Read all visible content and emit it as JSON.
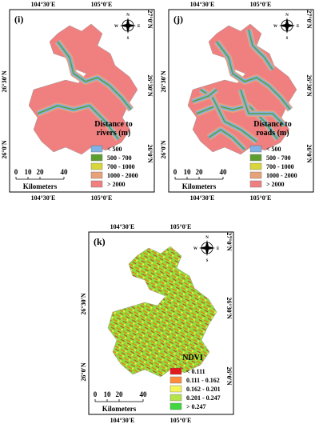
{
  "compass": [
    "N",
    "S",
    "E",
    "W"
  ],
  "panels": [
    {
      "label": "(i)",
      "top_labels": [
        "104°30'E",
        "105°0'E"
      ],
      "bottom_labels": [
        "104°30'E",
        "105°0'E"
      ],
      "left_labels": [
        "26°30'N",
        "26°0'N"
      ],
      "right_labels": [
        "27°0'N",
        "26°30'N",
        "26°0'N"
      ],
      "scale": {
        "ticks": [
          "0",
          "10",
          "20",
          "40"
        ],
        "unit": "Kilometers"
      },
      "legend": {
        "title": [
          "Distance to",
          "rivers (m)"
        ],
        "items": [
          {
            "label": "< 500",
            "color": "#7fb2e5"
          },
          {
            "label": "500 - 700",
            "color": "#5e9e2f"
          },
          {
            "label": "700 - 1000",
            "color": "#d8d63a"
          },
          {
            "label": "1000 - 2000",
            "color": "#e8a27a"
          },
          {
            "label": "> 2000",
            "color": "#f08080"
          }
        ]
      }
    },
    {
      "label": "(j)",
      "top_labels": [
        "104°30'E",
        "105°0'E"
      ],
      "bottom_labels": [
        "104°30'E",
        "105°0'E"
      ],
      "left_labels": [
        "26°30'N",
        "26°0'N"
      ],
      "right_labels": [
        "27°0'N",
        "26°30'N",
        "26°0'N"
      ],
      "scale": {
        "ticks": [
          "0",
          "10",
          "20",
          "40"
        ],
        "unit": "Kilometers"
      },
      "legend": {
        "title": [
          "Distance to",
          "roads (m)"
        ],
        "items": [
          {
            "label": "< 500",
            "color": "#7fb2e5"
          },
          {
            "label": "500 - 700",
            "color": "#5e9e2f"
          },
          {
            "label": "700 - 1000",
            "color": "#d8d63a"
          },
          {
            "label": "1000 - 2000",
            "color": "#e8a27a"
          },
          {
            "label": "> 2000",
            "color": "#f08080"
          }
        ]
      }
    },
    {
      "label": "(k)",
      "top_labels": [
        "104°30'E",
        "105°0'E"
      ],
      "bottom_labels": [
        "104°30'E",
        "105°0'E"
      ],
      "left_labels": [
        "26°30'N",
        "26°0'N"
      ],
      "right_labels": [
        "27°0'N",
        "26°30'N",
        "26°0'N"
      ],
      "scale": {
        "ticks": [
          "0",
          "10",
          "20",
          "40"
        ],
        "unit": "Kilometers"
      },
      "legend": {
        "title": [
          "NDVI"
        ],
        "items": [
          {
            "label": "< 0.111",
            "color": "#e31a1c"
          },
          {
            "label": "0.111 - 0.162",
            "color": "#fd8d3c"
          },
          {
            "label": "0.162 - 0.201",
            "color": "#f5f55a"
          },
          {
            "label": "0.201 - 0.247",
            "color": "#b5e34a"
          },
          {
            "label": "> 0.247",
            "color": "#3fd63f"
          }
        ]
      }
    }
  ]
}
